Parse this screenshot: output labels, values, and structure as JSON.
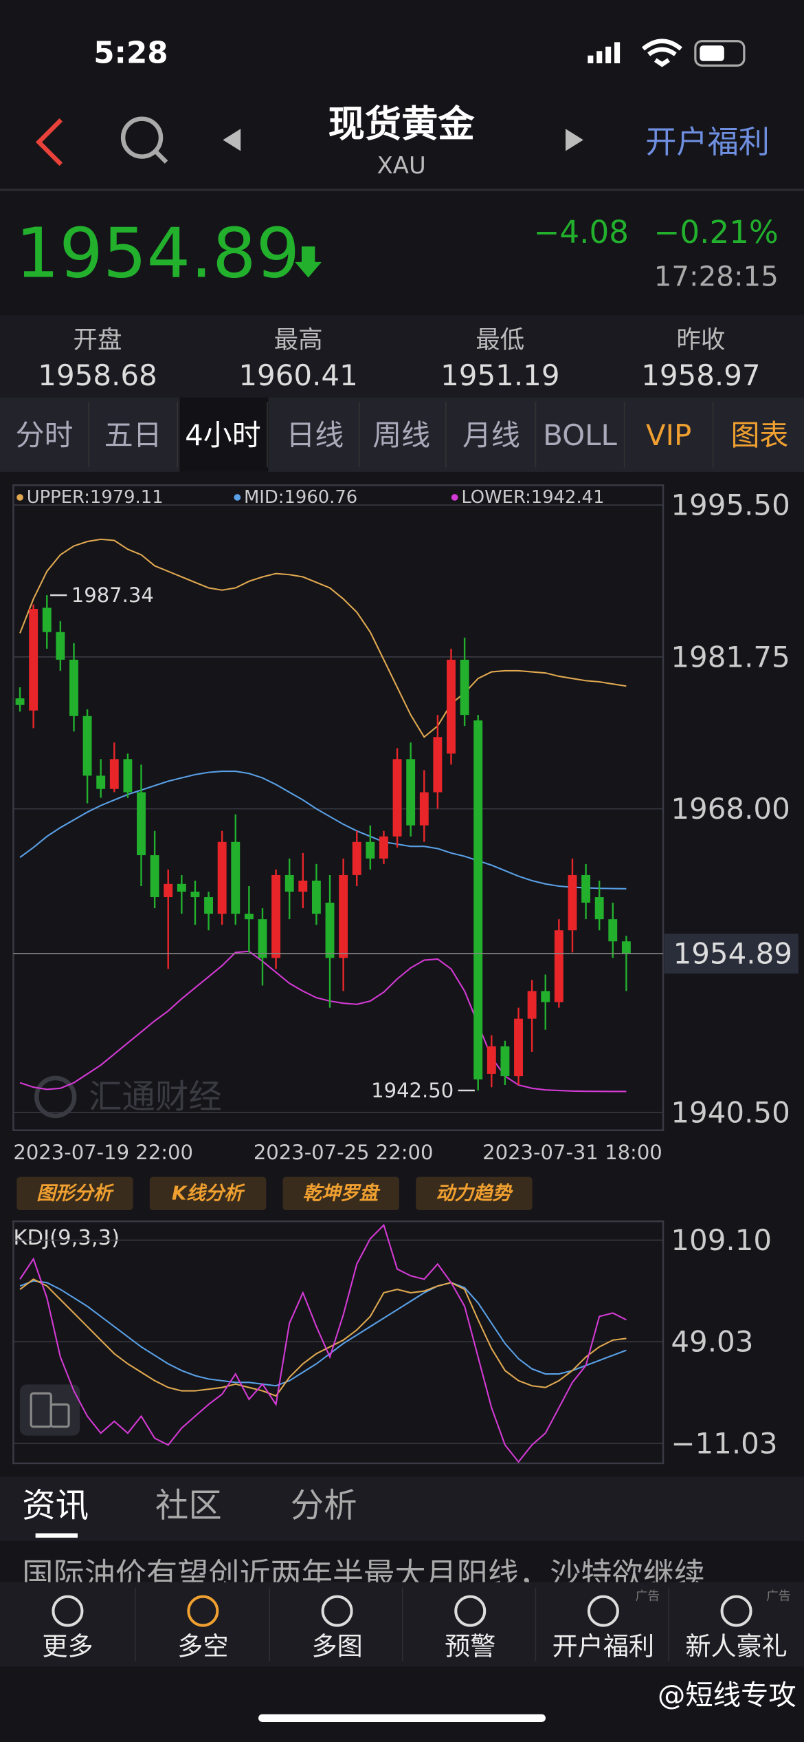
{
  "status_bar": {
    "time": "5:28"
  },
  "header": {
    "title": "现货黄金",
    "subtitle": "XAU",
    "promo": "开户福利"
  },
  "quote": {
    "price": 1954.89,
    "change": "−4.08",
    "change_pct": "−0.21%",
    "time": "17:28:15"
  },
  "stats": [
    {
      "label": "开盘",
      "value": 1958.68
    },
    {
      "label": "最高",
      "value": 1960.41
    },
    {
      "label": "最低",
      "value": 1951.19
    },
    {
      "label": "昨收",
      "value": 1958.97
    }
  ],
  "tabs": [
    "分时",
    "五日",
    "4小时",
    "日线",
    "周线",
    "月线",
    "BOLL",
    "VIP",
    "图表"
  ],
  "chart_data": [
    {
      "type": "candlestick",
      "categories": [
        "2023-07-19 22:00",
        null,
        null,
        null,
        null,
        null,
        null,
        null,
        null,
        null,
        null,
        null,
        null,
        null,
        null,
        null,
        null,
        null,
        null,
        null,
        null,
        null,
        null,
        null,
        "2023-07-25 22:00",
        null,
        null,
        null,
        null,
        null,
        null,
        null,
        null,
        null,
        null,
        null,
        null,
        null,
        null,
        null,
        null,
        "2023-07-31 18:00",
        null,
        null,
        null,
        null
      ],
      "open": [
        1978.0,
        1976.9,
        1986.2,
        1984.0,
        1981.5,
        1976.4,
        1971.0,
        1969.8,
        1972.5,
        1969.5,
        1963.8,
        1960.0,
        1961.2,
        1960.5,
        1960.0,
        1958.5,
        1965.0,
        1958.5,
        1958.0,
        1954.5,
        1962.0,
        1960.5,
        1961.5,
        1959.5,
        1954.5,
        1962.0,
        1965.0,
        1963.5,
        1965.5,
        1972.5,
        1966.5,
        1969.5,
        1973.0,
        1981.5,
        1976.0,
        1944.0,
        1946.5,
        1943.8,
        1949.0,
        1951.5,
        1950.5,
        1957.0,
        1962.0,
        1960.0,
        1958.0,
        1956.0
      ],
      "high": [
        1979.0,
        1986.5,
        1987.34,
        1985.0,
        1983.0,
        1977.0,
        1972.5,
        1974.0,
        1973.0,
        1972.0,
        1966.0,
        1962.5,
        1962.0,
        1961.5,
        1960.5,
        1966.0,
        1967.5,
        1961.0,
        1959.0,
        1962.5,
        1963.5,
        1964.0,
        1963.0,
        1962.0,
        1963.5,
        1966.0,
        1966.5,
        1966.0,
        1973.5,
        1974.0,
        1971.5,
        1976.5,
        1982.5,
        1983.5,
        1976.5,
        1947.5,
        1947.0,
        1950.0,
        1952.5,
        1953.0,
        1958.0,
        1963.5,
        1963.0,
        1961.5,
        1959.5,
        1956.5
      ],
      "low": [
        1976.8,
        1975.3,
        1982.5,
        1980.5,
        1975.0,
        1968.5,
        1969.0,
        1969.5,
        1969.0,
        1961.0,
        1959.0,
        1953.5,
        1958.5,
        1957.5,
        1957.0,
        1957.5,
        1957.5,
        1955.0,
        1952.0,
        1953.5,
        1958.0,
        1959.0,
        1957.5,
        1950.0,
        1951.5,
        1961.0,
        1962.5,
        1963.0,
        1964.5,
        1965.5,
        1965.0,
        1968.0,
        1972.0,
        1975.5,
        1942.5,
        1942.8,
        1943.0,
        1943.0,
        1946.0,
        1948.0,
        1950.0,
        1955.0,
        1958.0,
        1957.0,
        1954.5,
        1951.5
      ],
      "close": [
        1977.4,
        1986.1,
        1984.0,
        1981.5,
        1976.4,
        1971.0,
        1969.8,
        1972.5,
        1969.5,
        1963.8,
        1960.0,
        1961.2,
        1960.5,
        1960.0,
        1958.5,
        1965.0,
        1958.5,
        1958.0,
        1954.5,
        1962.0,
        1960.5,
        1961.5,
        1958.5,
        1954.5,
        1962.0,
        1965.0,
        1963.5,
        1965.5,
        1972.5,
        1966.5,
        1969.5,
        1974.5,
        1981.5,
        1976.5,
        1943.5,
        1946.5,
        1943.8,
        1949.0,
        1951.5,
        1950.5,
        1957.0,
        1962.0,
        1959.5,
        1958.0,
        1956.0,
        1954.89
      ],
      "up_color": "#e8262a",
      "down_color": "#22b02d",
      "series": [
        {
          "name": "UPPER:1979.11",
          "color": "#e0a850",
          "values": [
            1983.9,
            1987,
            1989.5,
            1991,
            1991.8,
            1992.2,
            1992.4,
            1992.3,
            1991.5,
            1991,
            1990,
            1989.5,
            1989,
            1988.5,
            1988,
            1987.8,
            1988,
            1988.6,
            1989,
            1989.3,
            1989.2,
            1989,
            1988.5,
            1988,
            1987,
            1985.8,
            1984,
            1981.5,
            1979,
            1976.5,
            1974.5,
            1975.5,
            1977.5,
            1978.5,
            1979.8,
            1980.4,
            1980.5,
            1980.5,
            1980.4,
            1980.3,
            1980,
            1979.8,
            1979.6,
            1979.5,
            1979.3,
            1979.11
          ]
        },
        {
          "name": "MID:1960.76",
          "color": "#5aa0e6",
          "values": [
            1963.6,
            1964.5,
            1965.5,
            1966.3,
            1967,
            1967.7,
            1968.3,
            1968.8,
            1969.3,
            1969.7,
            1970.1,
            1970.5,
            1970.8,
            1971.1,
            1971.3,
            1971.4,
            1971.4,
            1971.2,
            1970.8,
            1970.2,
            1969.5,
            1968.8,
            1968,
            1967.3,
            1966.6,
            1966,
            1965.5,
            1965,
            1964.8,
            1964.6,
            1964.6,
            1964.4,
            1964,
            1963.7,
            1963.3,
            1962.9,
            1962.4,
            1961.9,
            1961.5,
            1961.2,
            1961,
            1960.9,
            1960.85,
            1960.8,
            1960.78,
            1960.76
          ]
        },
        {
          "name": "LOWER:1942.41",
          "color": "#d43ad4",
          "values": [
            1943.2,
            1942.8,
            1942.6,
            1942.7,
            1943.2,
            1944,
            1944.8,
            1945.8,
            1946.8,
            1947.8,
            1948.8,
            1949.7,
            1950.8,
            1951.8,
            1952.8,
            1953.8,
            1955,
            1955.1,
            1954.2,
            1953.2,
            1952.2,
            1951.5,
            1950.9,
            1950.6,
            1950.4,
            1950.3,
            1950.6,
            1951.4,
            1952.6,
            1953.6,
            1954.3,
            1954.4,
            1953.5,
            1951.5,
            1948.5,
            1945.5,
            1943.8,
            1943,
            1942.7,
            1942.55,
            1942.5,
            1942.45,
            1942.43,
            1942.42,
            1942.41,
            1942.41
          ]
        }
      ],
      "ylim": [
        1938.9,
        1997.3
      ],
      "yticks": [
        {
          "value": 1995.5,
          "label": "1995.50"
        },
        1981.75,
        {
          "value": 1968,
          "label": "1968.00"
        },
        {
          "value": 1940.5,
          "label": "1940.50"
        }
      ],
      "grid": true,
      "last_price": 1954.89,
      "annotations": [
        1987.34,
        {
          "value": 1942.5,
          "label": "1942.50"
        }
      ],
      "watermark": "汇通财经"
    },
    {
      "type": "line",
      "title": "KDJ(9,3,3)",
      "series": [
        {
          "color": "#5aa0e6",
          "values": [
            82,
            85,
            84,
            80,
            75,
            70,
            64,
            58,
            52,
            46,
            41,
            36,
            32,
            29,
            27,
            26,
            25,
            25,
            24,
            23,
            26,
            31,
            36,
            42,
            48,
            53,
            58,
            63,
            68,
            73,
            78,
            82,
            84,
            81,
            72,
            60,
            48,
            39,
            33,
            30,
            30,
            32,
            35,
            38,
            41,
            44
          ]
        },
        {
          "color": "#e0a850",
          "values": [
            80,
            86,
            82,
            74,
            66,
            58,
            50,
            42,
            36,
            31,
            26,
            22,
            20,
            20,
            21,
            22,
            24,
            22,
            20,
            17,
            28,
            36,
            42,
            46,
            50,
            56,
            64,
            78,
            80,
            78,
            79,
            82,
            84,
            80,
            62,
            45,
            32,
            26,
            23,
            22,
            26,
            32,
            40,
            46,
            50,
            51
          ]
        },
        {
          "color": "#d43ad4",
          "values": [
            86,
            98,
            75,
            40,
            20,
            5,
            -5,
            2,
            -5,
            5,
            -8,
            -12,
            -2,
            5,
            12,
            18,
            30,
            15,
            24,
            12,
            60,
            78,
            58,
            40,
            65,
            95,
            110,
            118,
            92,
            88,
            86,
            95,
            84,
            70,
            40,
            10,
            -12,
            -22,
            -12,
            -5,
            10,
            25,
            35,
            64,
            66,
            62
          ]
        }
      ],
      "ylim": [
        -22.85,
        120.26
      ],
      "yticks": [
        {
          "value": 109.1,
          "label": "109.10"
        },
        49.03,
        {
          "value": -11.03,
          "label": "−11.03"
        }
      ],
      "grid": true
    }
  ],
  "tools": [
    "图形分析",
    "K线分析",
    "乾坤罗盘",
    "动力趋势"
  ],
  "news_tabs": [
    "资讯",
    "社区",
    "分析"
  ],
  "headline": "国际油价有望创近两年半最大月阳线，沙特欲继续",
  "nav": [
    "更多",
    "多空",
    "多图",
    "预警",
    "开户福利",
    "新人豪礼"
  ],
  "ad_tag": "广告",
  "credit": "@短线专攻"
}
